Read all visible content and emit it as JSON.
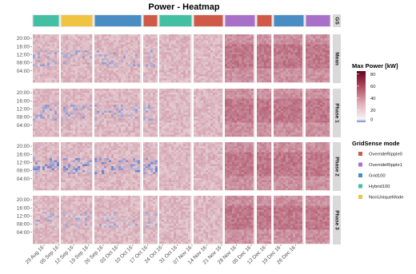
{
  "chart_data": {
    "type": "heatmap",
    "title": "Power - Heatmap",
    "facet_strip_top": "GS",
    "facets": [
      "Mean",
      "Phase 1",
      "Phase 2",
      "Phase 3"
    ],
    "y_ticks": [
      "20:00",
      "16:00",
      "12:00",
      "08:00",
      "04:00"
    ],
    "x_ticks": [
      "29 Aug 16",
      "05 Sep 16",
      "12 Sep 16",
      "19 Sep 16",
      "26 Sep 16",
      "03 Oct 16",
      "10 Oct 16",
      "17 Oct 16",
      "24 Oct 16",
      "31 Oct 16",
      "07 Nov 16",
      "14 Nov 16",
      "21 Nov 16",
      "28 Nov 16",
      "05 Dec 16",
      "12 Dec 16",
      "19 Dec 16",
      "26 Dec 16"
    ],
    "gs_segments": [
      {
        "mode": "Hybrid100",
        "weeks": 1
      },
      {
        "mode": "NonUniqueMode",
        "weeks": 1
      },
      {
        "mode": "Grid100",
        "weeks": 2
      },
      {
        "mode": "OverrideRipple0",
        "weeks": 0.5
      },
      {
        "mode": "Hybrid100",
        "weeks": 1.5
      },
      {
        "mode": "OverrideRipple0",
        "weeks": 1
      },
      {
        "mode": "OverrideRipple1",
        "weeks": 1.5
      },
      {
        "mode": "OverrideRipple0",
        "weeks": 0.5
      },
      {
        "mode": "Grid100",
        "weeks": 1
      },
      {
        "mode": "OverrideRipple1",
        "weeks": 1
      }
    ],
    "colorbar": {
      "title": "Max Power [kW]",
      "ticks": [
        80,
        60,
        40,
        20,
        0
      ],
      "range": [
        0,
        85
      ],
      "colors": {
        "low": "#6b86c9",
        "zero": "#f7f4f6",
        "high": "#67001f"
      }
    },
    "legend": {
      "title": "GridSense mode",
      "entries": [
        {
          "label": "OverrideRipple0",
          "color": "#cf5a48"
        },
        {
          "label": "OverrideRipple1",
          "color": "#a970c9"
        },
        {
          "label": "Grid100",
          "color": "#4a8cc4"
        },
        {
          "label": "Hybrid100",
          "color": "#43c0a4"
        },
        {
          "label": "NonUniqueMode",
          "color": "#f0c441"
        }
      ]
    }
  }
}
